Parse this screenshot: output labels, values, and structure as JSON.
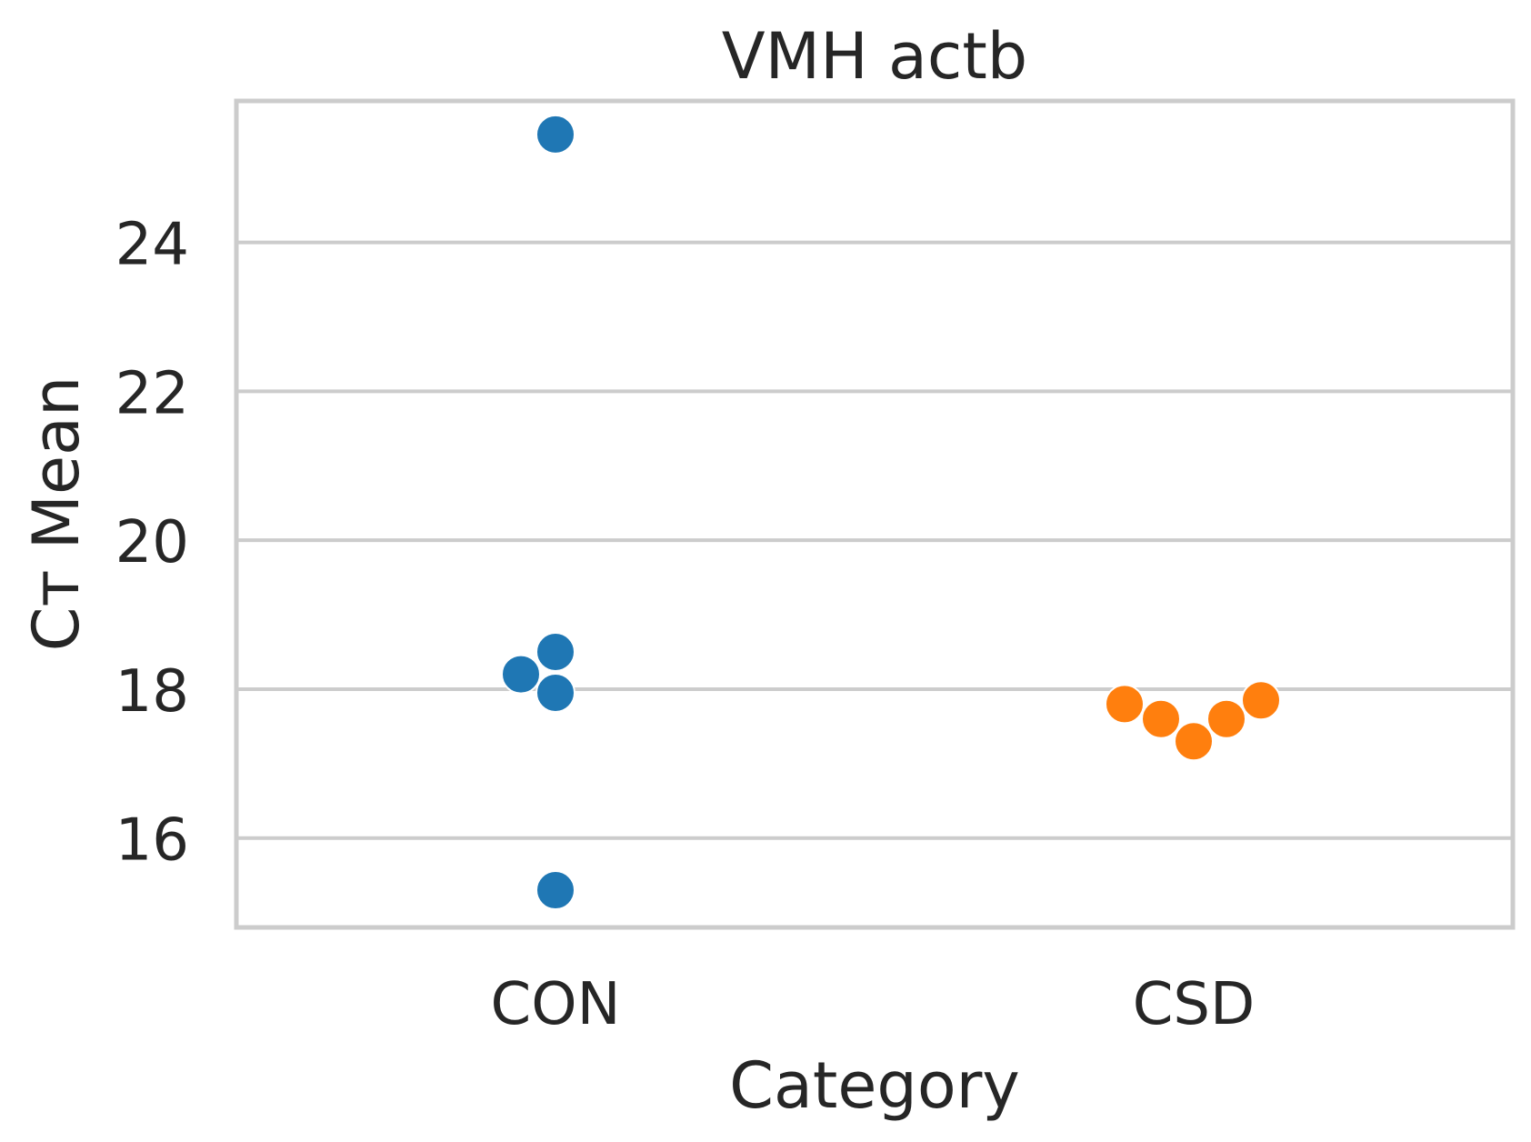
{
  "chart_data": {
    "type": "scatter",
    "subtype": "swarm",
    "title": "VMH actb",
    "xlabel": "Category",
    "ylabel": "Cт Mean",
    "categories": [
      "CON",
      "CSD"
    ],
    "ylim": [
      14.8,
      25.9
    ],
    "yticks": [
      16,
      18,
      20,
      22,
      24
    ],
    "grid": "horizontal",
    "series": [
      {
        "category": "CON",
        "color": "#1f77b4",
        "values": [
          25.45,
          18.5,
          18.2,
          17.95,
          15.3
        ]
      },
      {
        "category": "CSD",
        "color": "#ff7f0e",
        "values": [
          17.85,
          17.6,
          17.3,
          17.6,
          17.8
        ]
      }
    ]
  }
}
